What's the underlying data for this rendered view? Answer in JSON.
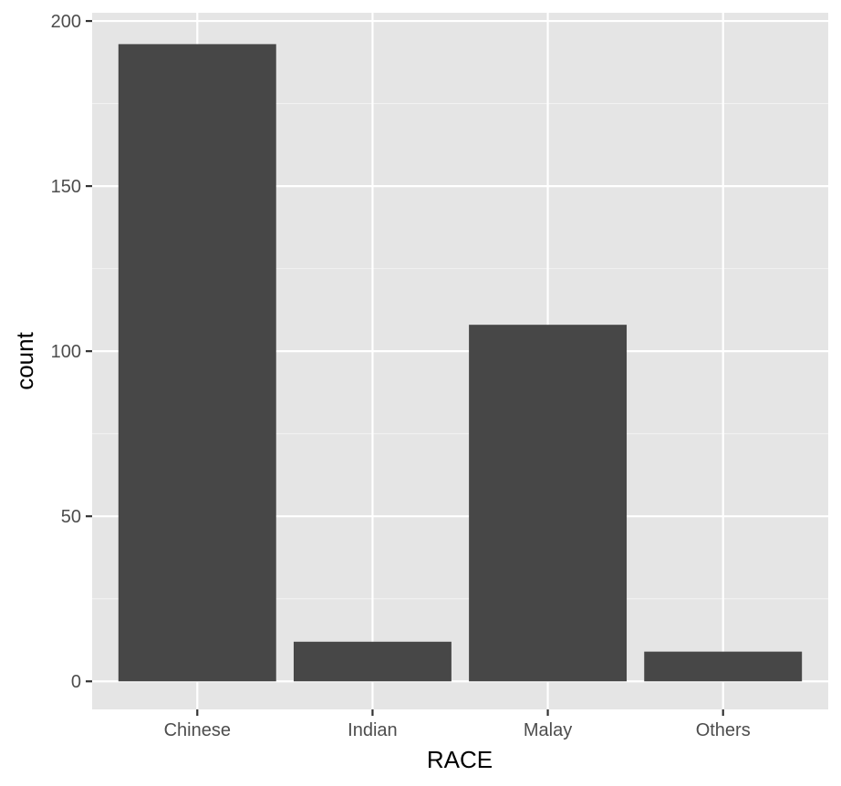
{
  "chart_data": {
    "type": "bar",
    "title": "",
    "xlabel": "RACE",
    "ylabel": "count",
    "categories": [
      "Chinese",
      "Indian",
      "Malay",
      "Others"
    ],
    "values": [
      193,
      12,
      108,
      9
    ],
    "ylim": [
      -8.5,
      202.5
    ],
    "yticks": [
      0,
      50,
      100,
      150,
      200
    ],
    "grid": true,
    "legend": "none",
    "colors": {
      "bar": "#474747",
      "panel": "#e5e5e5",
      "grid_major": "#ffffff",
      "grid_minor": "#f2f2f2",
      "tick": "#333333"
    }
  }
}
